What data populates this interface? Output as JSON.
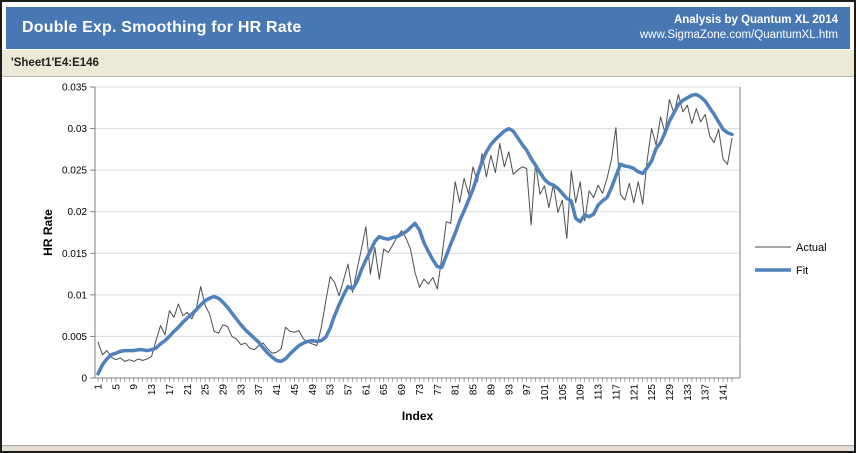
{
  "header": {
    "title": "Double Exp. Smoothing for HR Rate",
    "credit": "Analysis by Quantum XL 2014",
    "website": "www.SigmaZone.com/QuantumXL.htm"
  },
  "sheet_ref": "'Sheet1'E4:E146",
  "colors": {
    "header_bg": "#4878B4",
    "header_text": "#FFFFFF",
    "sheet_bar_bg": "#ECE9D8",
    "gridline": "#D7DCE3",
    "axis": "#808080",
    "actual": "#4D4D4D",
    "fit": "#4F81BD"
  },
  "chart_data": {
    "type": "line",
    "title": "",
    "xlabel": "Index",
    "ylabel": "HR Rate",
    "xlim": [
      1,
      143
    ],
    "ylim": [
      0,
      0.035
    ],
    "grid": "horizontal",
    "legend_position": "right",
    "x_ticks": [
      1,
      5,
      9,
      13,
      17,
      21,
      25,
      29,
      33,
      37,
      41,
      45,
      49,
      53,
      57,
      61,
      65,
      69,
      73,
      77,
      81,
      85,
      89,
      93,
      97,
      101,
      105,
      109,
      113,
      117,
      121,
      125,
      129,
      133,
      137,
      141
    ],
    "y_ticks": [
      {
        "value": 0,
        "label": "0"
      },
      {
        "value": 0.005,
        "label": "0.005"
      },
      {
        "value": 0.01,
        "label": "0.01"
      },
      {
        "value": 0.015,
        "label": "0.015"
      },
      {
        "value": 0.02,
        "label": "0.02"
      },
      {
        "value": 0.025,
        "label": "0.025"
      },
      {
        "value": 0.03,
        "label": "0.03"
      },
      {
        "value": 0.035,
        "label": "0.035"
      }
    ],
    "series": [
      {
        "name": "Actual",
        "color": "#4D4D4D",
        "width": 1,
        "values": [
          0.0043,
          0.0028,
          0.0033,
          0.0025,
          0.0022,
          0.0024,
          0.002,
          0.0022,
          0.002,
          0.0023,
          0.0021,
          0.0023,
          0.0026,
          0.0045,
          0.0063,
          0.0052,
          0.0081,
          0.0073,
          0.0089,
          0.0075,
          0.0079,
          0.0071,
          0.0083,
          0.011,
          0.0087,
          0.0077,
          0.0056,
          0.0054,
          0.0064,
          0.0062,
          0.005,
          0.0047,
          0.004,
          0.0042,
          0.0036,
          0.0034,
          0.0039,
          0.0042,
          0.0035,
          0.003,
          0.0031,
          0.0035,
          0.0061,
          0.0056,
          0.0055,
          0.0057,
          0.0047,
          0.0043,
          0.0041,
          0.0039,
          0.006,
          0.0092,
          0.0122,
          0.0115,
          0.0099,
          0.0118,
          0.0137,
          0.0103,
          0.013,
          0.0155,
          0.0182,
          0.0125,
          0.0157,
          0.0119,
          0.0155,
          0.0151,
          0.016,
          0.017,
          0.0177,
          0.0168,
          0.0155,
          0.0127,
          0.0109,
          0.0119,
          0.0113,
          0.0121,
          0.0107,
          0.0145,
          0.0188,
          0.0186,
          0.0236,
          0.0211,
          0.024,
          0.0221,
          0.0254,
          0.0236,
          0.027,
          0.0242,
          0.0268,
          0.0247,
          0.0282,
          0.0254,
          0.0272,
          0.0245,
          0.025,
          0.0254,
          0.0252,
          0.0184,
          0.0258,
          0.0221,
          0.0231,
          0.0205,
          0.0233,
          0.0199,
          0.0214,
          0.0168,
          0.0249,
          0.0211,
          0.0236,
          0.0189,
          0.0225,
          0.0217,
          0.0232,
          0.0222,
          0.024,
          0.0263,
          0.0301,
          0.0221,
          0.0214,
          0.0234,
          0.0211,
          0.0236,
          0.0209,
          0.0262,
          0.03,
          0.028,
          0.0314,
          0.0295,
          0.0335,
          0.0318,
          0.0341,
          0.032,
          0.0328,
          0.0306,
          0.0324,
          0.0308,
          0.0317,
          0.0291,
          0.0283,
          0.0299,
          0.0263,
          0.0257,
          0.0288
        ]
      },
      {
        "name": "Fit",
        "color": "#4F81BD",
        "width": 3.5,
        "values": [
          0.0005,
          0.0016,
          0.0023,
          0.0028,
          0.003,
          0.0032,
          0.0033,
          0.0033,
          0.0033,
          0.0034,
          0.0034,
          0.0033,
          0.0034,
          0.0036,
          0.0041,
          0.0045,
          0.005,
          0.0056,
          0.0061,
          0.0067,
          0.0072,
          0.0077,
          0.0082,
          0.0088,
          0.0093,
          0.0096,
          0.0098,
          0.0096,
          0.0091,
          0.0085,
          0.0078,
          0.0071,
          0.0064,
          0.0058,
          0.0053,
          0.0048,
          0.0043,
          0.0036,
          0.003,
          0.0025,
          0.0021,
          0.002,
          0.0023,
          0.0029,
          0.0034,
          0.0039,
          0.0042,
          0.0044,
          0.0045,
          0.0044,
          0.0045,
          0.0049,
          0.006,
          0.0075,
          0.0088,
          0.01,
          0.011,
          0.0107,
          0.0116,
          0.013,
          0.0142,
          0.0153,
          0.0164,
          0.017,
          0.0168,
          0.0167,
          0.0169,
          0.017,
          0.0173,
          0.0176,
          0.0181,
          0.0186,
          0.0178,
          0.0163,
          0.0152,
          0.0142,
          0.0134,
          0.0133,
          0.0147,
          0.0161,
          0.0174,
          0.0189,
          0.0201,
          0.0214,
          0.0227,
          0.0244,
          0.026,
          0.0272,
          0.0281,
          0.0287,
          0.0292,
          0.0297,
          0.03,
          0.0297,
          0.0289,
          0.0281,
          0.0274,
          0.0264,
          0.0256,
          0.0247,
          0.0239,
          0.0234,
          0.0232,
          0.0228,
          0.0222,
          0.0216,
          0.0213,
          0.0192,
          0.0188,
          0.0196,
          0.0194,
          0.0197,
          0.0208,
          0.0213,
          0.0217,
          0.0229,
          0.0243,
          0.0257,
          0.0255,
          0.0254,
          0.0252,
          0.0248,
          0.0246,
          0.0253,
          0.0261,
          0.0276,
          0.0283,
          0.0295,
          0.0309,
          0.0319,
          0.0329,
          0.0334,
          0.0337,
          0.034,
          0.0341,
          0.0338,
          0.0333,
          0.0325,
          0.0317,
          0.0308,
          0.0299,
          0.0295,
          0.0293
        ]
      }
    ]
  }
}
